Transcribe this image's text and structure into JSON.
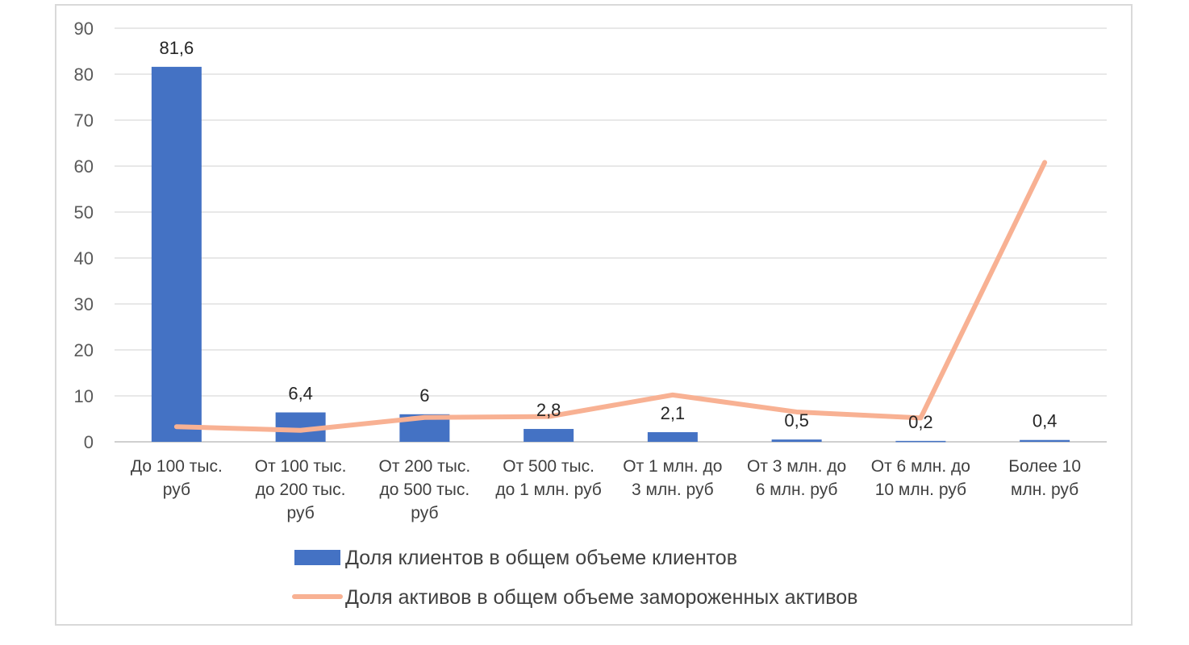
{
  "chart_data": {
    "type": "bar",
    "categories": [
      [
        "До 100 тыс.",
        "руб"
      ],
      [
        "От 100 тыс.",
        "до 200 тыс.",
        "руб"
      ],
      [
        "От 200 тыс.",
        "до 500 тыс.",
        "руб"
      ],
      [
        "От 500 тыс.",
        "до 1 млн. руб"
      ],
      [
        "От 1 млн. до",
        "3 млн. руб"
      ],
      [
        "От 3 млн. до",
        "6 млн. руб"
      ],
      [
        "От 6 млн. до",
        "10 млн. руб"
      ],
      [
        "Более 10",
        "млн. руб"
      ]
    ],
    "series": [
      {
        "name": "Доля клиентов в общем объеме клиентов",
        "type": "bar",
        "color": "#4472c4",
        "values": [
          81.6,
          6.4,
          6,
          2.8,
          2.1,
          0.5,
          0.2,
          0.4
        ],
        "labels": [
          "81,6",
          "6,4",
          "6",
          "2,8",
          "2,1",
          "0,5",
          "0,2",
          "0,4"
        ]
      },
      {
        "name": "Доля активов в общем объеме замороженных активов",
        "type": "line",
        "color": "#f8b193",
        "values": [
          3.3,
          2.5,
          5.3,
          5.5,
          10.2,
          6.5,
          5.2,
          60.8
        ]
      }
    ],
    "ylim": [
      0,
      90
    ],
    "yticks": [
      0,
      10,
      20,
      30,
      40,
      50,
      60,
      70,
      80,
      90
    ],
    "grid": true,
    "legend": "bottom"
  }
}
